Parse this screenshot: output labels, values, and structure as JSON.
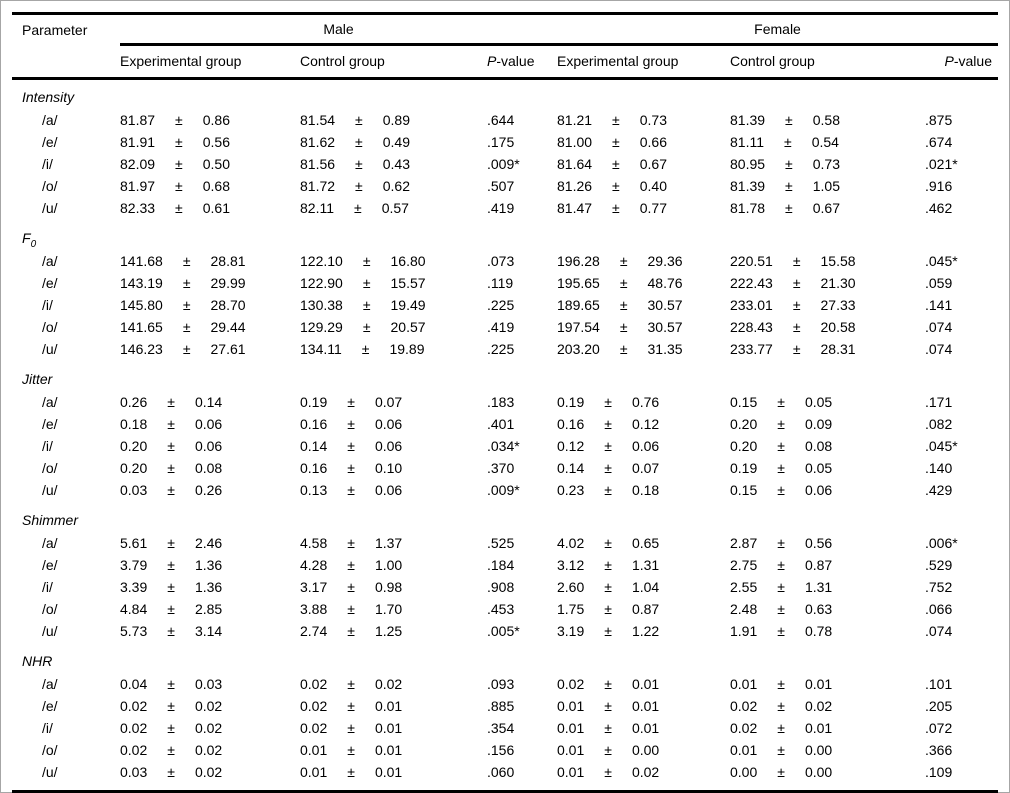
{
  "table": {
    "header": {
      "parameter": "Parameter",
      "male": "Male",
      "female": "Female",
      "experimental": "Experimental group",
      "control": "Control group",
      "p_italic": "P",
      "p_rest": "-value"
    },
    "plusminus": "±",
    "sections": [
      {
        "label": "Intensity",
        "rows": [
          {
            "vowel": "/a/",
            "male_exp": {
              "mean": "81.87",
              "sd": "0.86"
            },
            "male_ctrl": {
              "mean": "81.54",
              "sd": "0.89"
            },
            "male_p": ".644",
            "female_exp": {
              "mean": "81.21",
              "sd": "0.73"
            },
            "female_ctrl": {
              "mean": "81.39",
              "sd": "0.58"
            },
            "female_p": ".875"
          },
          {
            "vowel": "/e/",
            "male_exp": {
              "mean": "81.91",
              "sd": "0.56"
            },
            "male_ctrl": {
              "mean": "81.62",
              "sd": "0.49"
            },
            "male_p": ".175",
            "female_exp": {
              "mean": "81.00",
              "sd": "0.66"
            },
            "female_ctrl": {
              "mean": "81.11",
              "sd": "0.54"
            },
            "female_p": ".674"
          },
          {
            "vowel": "/i/",
            "male_exp": {
              "mean": "82.09",
              "sd": "0.50"
            },
            "male_ctrl": {
              "mean": "81.56",
              "sd": "0.43"
            },
            "male_p": ".009*",
            "female_exp": {
              "mean": "81.64",
              "sd": "0.67"
            },
            "female_ctrl": {
              "mean": "80.95",
              "sd": "0.73"
            },
            "female_p": ".021*"
          },
          {
            "vowel": "/o/",
            "male_exp": {
              "mean": "81.97",
              "sd": "0.68"
            },
            "male_ctrl": {
              "mean": "81.72",
              "sd": "0.62"
            },
            "male_p": ".507",
            "female_exp": {
              "mean": "81.26",
              "sd": "0.40"
            },
            "female_ctrl": {
              "mean": "81.39",
              "sd": "1.05"
            },
            "female_p": ".916"
          },
          {
            "vowel": "/u/",
            "male_exp": {
              "mean": "82.33",
              "sd": "0.61"
            },
            "male_ctrl": {
              "mean": "82.11",
              "sd": "0.57"
            },
            "male_p": ".419",
            "female_exp": {
              "mean": "81.47",
              "sd": "0.77"
            },
            "female_ctrl": {
              "mean": "81.78",
              "sd": "0.67"
            },
            "female_p": ".462"
          }
        ]
      },
      {
        "label": "F",
        "label_sub": "0",
        "rows": [
          {
            "vowel": "/a/",
            "male_exp": {
              "mean": "141.68",
              "sd": "28.81"
            },
            "male_ctrl": {
              "mean": "122.10",
              "sd": "16.80"
            },
            "male_p": ".073",
            "female_exp": {
              "mean": "196.28",
              "sd": "29.36"
            },
            "female_ctrl": {
              "mean": "220.51",
              "sd": "15.58"
            },
            "female_p": ".045*"
          },
          {
            "vowel": "/e/",
            "male_exp": {
              "mean": "143.19",
              "sd": "29.99"
            },
            "male_ctrl": {
              "mean": "122.90",
              "sd": "15.57"
            },
            "male_p": ".119",
            "female_exp": {
              "mean": "195.65",
              "sd": "48.76"
            },
            "female_ctrl": {
              "mean": "222.43",
              "sd": "21.30"
            },
            "female_p": ".059"
          },
          {
            "vowel": "/i/",
            "male_exp": {
              "mean": "145.80",
              "sd": "28.70"
            },
            "male_ctrl": {
              "mean": "130.38",
              "sd": "19.49"
            },
            "male_p": ".225",
            "female_exp": {
              "mean": "189.65",
              "sd": "30.57"
            },
            "female_ctrl": {
              "mean": "233.01",
              "sd": "27.33"
            },
            "female_p": ".141"
          },
          {
            "vowel": "/o/",
            "male_exp": {
              "mean": "141.65",
              "sd": "29.44"
            },
            "male_ctrl": {
              "mean": "129.29",
              "sd": "20.57"
            },
            "male_p": ".419",
            "female_exp": {
              "mean": "197.54",
              "sd": "30.57"
            },
            "female_ctrl": {
              "mean": "228.43",
              "sd": "20.58"
            },
            "female_p": ".074"
          },
          {
            "vowel": "/u/",
            "male_exp": {
              "mean": "146.23",
              "sd": "27.61"
            },
            "male_ctrl": {
              "mean": "134.11",
              "sd": "19.89"
            },
            "male_p": ".225",
            "female_exp": {
              "mean": "203.20",
              "sd": "31.35"
            },
            "female_ctrl": {
              "mean": "233.77",
              "sd": "28.31"
            },
            "female_p": ".074"
          }
        ]
      },
      {
        "label": "Jitter",
        "rows": [
          {
            "vowel": "/a/",
            "male_exp": {
              "mean": "0.26",
              "sd": "0.14"
            },
            "male_ctrl": {
              "mean": "0.19",
              "sd": "0.07"
            },
            "male_p": ".183",
            "female_exp": {
              "mean": "0.19",
              "sd": "0.76"
            },
            "female_ctrl": {
              "mean": "0.15",
              "sd": "0.05"
            },
            "female_p": ".171"
          },
          {
            "vowel": "/e/",
            "male_exp": {
              "mean": "0.18",
              "sd": "0.06"
            },
            "male_ctrl": {
              "mean": "0.16",
              "sd": "0.06"
            },
            "male_p": ".401",
            "female_exp": {
              "mean": "0.16",
              "sd": "0.12"
            },
            "female_ctrl": {
              "mean": "0.20",
              "sd": "0.09"
            },
            "female_p": ".082"
          },
          {
            "vowel": "/i/",
            "male_exp": {
              "mean": "0.20",
              "sd": "0.06"
            },
            "male_ctrl": {
              "mean": "0.14",
              "sd": "0.06"
            },
            "male_p": ".034*",
            "female_exp": {
              "mean": "0.12",
              "sd": "0.06"
            },
            "female_ctrl": {
              "mean": "0.20",
              "sd": "0.08"
            },
            "female_p": ".045*"
          },
          {
            "vowel": "/o/",
            "male_exp": {
              "mean": "0.20",
              "sd": "0.08"
            },
            "male_ctrl": {
              "mean": "0.16",
              "sd": "0.10"
            },
            "male_p": ".370",
            "female_exp": {
              "mean": "0.14",
              "sd": "0.07"
            },
            "female_ctrl": {
              "mean": "0.19",
              "sd": "0.05"
            },
            "female_p": ".140"
          },
          {
            "vowel": "/u/",
            "male_exp": {
              "mean": "0.03",
              "sd": "0.26"
            },
            "male_ctrl": {
              "mean": "0.13",
              "sd": "0.06"
            },
            "male_p": ".009*",
            "female_exp": {
              "mean": "0.23",
              "sd": "0.18"
            },
            "female_ctrl": {
              "mean": "0.15",
              "sd": "0.06"
            },
            "female_p": ".429"
          }
        ]
      },
      {
        "label": "Shimmer",
        "rows": [
          {
            "vowel": "/a/",
            "male_exp": {
              "mean": "5.61",
              "sd": "2.46"
            },
            "male_ctrl": {
              "mean": "4.58",
              "sd": "1.37"
            },
            "male_p": ".525",
            "female_exp": {
              "mean": "4.02",
              "sd": "0.65"
            },
            "female_ctrl": {
              "mean": "2.87",
              "sd": "0.56"
            },
            "female_p": ".006*"
          },
          {
            "vowel": "/e/",
            "male_exp": {
              "mean": "3.79",
              "sd": "1.36"
            },
            "male_ctrl": {
              "mean": "4.28",
              "sd": "1.00"
            },
            "male_p": ".184",
            "female_exp": {
              "mean": "3.12",
              "sd": "1.31"
            },
            "female_ctrl": {
              "mean": "2.75",
              "sd": "0.87"
            },
            "female_p": ".529"
          },
          {
            "vowel": "/i/",
            "male_exp": {
              "mean": "3.39",
              "sd": "1.36"
            },
            "male_ctrl": {
              "mean": "3.17",
              "sd": "0.98"
            },
            "male_p": ".908",
            "female_exp": {
              "mean": "2.60",
              "sd": "1.04"
            },
            "female_ctrl": {
              "mean": "2.55",
              "sd": "1.31"
            },
            "female_p": ".752"
          },
          {
            "vowel": "/o/",
            "male_exp": {
              "mean": "4.84",
              "sd": "2.85"
            },
            "male_ctrl": {
              "mean": "3.88",
              "sd": "1.70"
            },
            "male_p": ".453",
            "female_exp": {
              "mean": "1.75",
              "sd": "0.87"
            },
            "female_ctrl": {
              "mean": "2.48",
              "sd": "0.63"
            },
            "female_p": ".066"
          },
          {
            "vowel": "/u/",
            "male_exp": {
              "mean": "5.73",
              "sd": "3.14"
            },
            "male_ctrl": {
              "mean": "2.74",
              "sd": "1.25"
            },
            "male_p": ".005*",
            "female_exp": {
              "mean": "3.19",
              "sd": "1.22"
            },
            "female_ctrl": {
              "mean": "1.91",
              "sd": "0.78"
            },
            "female_p": ".074"
          }
        ]
      },
      {
        "label": "NHR",
        "rows": [
          {
            "vowel": "/a/",
            "male_exp": {
              "mean": "0.04",
              "sd": "0.03"
            },
            "male_ctrl": {
              "mean": "0.02",
              "sd": "0.02"
            },
            "male_p": ".093",
            "female_exp": {
              "mean": "0.02",
              "sd": "0.01"
            },
            "female_ctrl": {
              "mean": "0.01",
              "sd": "0.01"
            },
            "female_p": ".101"
          },
          {
            "vowel": "/e/",
            "male_exp": {
              "mean": "0.02",
              "sd": "0.02"
            },
            "male_ctrl": {
              "mean": "0.02",
              "sd": "0.01"
            },
            "male_p": ".885",
            "female_exp": {
              "mean": "0.01",
              "sd": "0.01"
            },
            "female_ctrl": {
              "mean": "0.02",
              "sd": "0.02"
            },
            "female_p": ".205"
          },
          {
            "vowel": "/i/",
            "male_exp": {
              "mean": "0.02",
              "sd": "0.02"
            },
            "male_ctrl": {
              "mean": "0.02",
              "sd": "0.01"
            },
            "male_p": ".354",
            "female_exp": {
              "mean": "0.01",
              "sd": "0.01"
            },
            "female_ctrl": {
              "mean": "0.02",
              "sd": "0.01"
            },
            "female_p": ".072"
          },
          {
            "vowel": "/o/",
            "male_exp": {
              "mean": "0.02",
              "sd": "0.02"
            },
            "male_ctrl": {
              "mean": "0.01",
              "sd": "0.01"
            },
            "male_p": ".156",
            "female_exp": {
              "mean": "0.01",
              "sd": "0.00"
            },
            "female_ctrl": {
              "mean": "0.01",
              "sd": "0.00"
            },
            "female_p": ".366"
          },
          {
            "vowel": "/u/",
            "male_exp": {
              "mean": "0.03",
              "sd": "0.02"
            },
            "male_ctrl": {
              "mean": "0.01",
              "sd": "0.01"
            },
            "male_p": ".060",
            "female_exp": {
              "mean": "0.01",
              "sd": "0.02"
            },
            "female_ctrl": {
              "mean": "0.00",
              "sd": "0.00"
            },
            "female_p": ".109"
          }
        ]
      }
    ]
  }
}
